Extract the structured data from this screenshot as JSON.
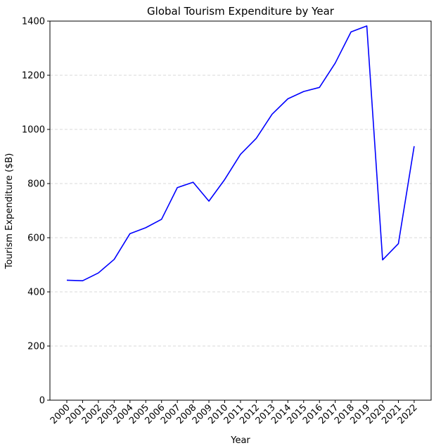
{
  "chart_data": {
    "type": "line",
    "title": "Global Tourism Expenditure by Year",
    "xlabel": "Year",
    "ylabel": "Tourism Expenditure ($B)",
    "ylim": [
      0,
      1400
    ],
    "yticks": [
      0,
      200,
      400,
      600,
      800,
      1000,
      1200,
      1400
    ],
    "grid": "y-dashed",
    "categories": [
      "2000",
      "2001",
      "2002",
      "2003",
      "2004",
      "2005",
      "2006",
      "2007",
      "2008",
      "2009",
      "2010",
      "2011",
      "2012",
      "2013",
      "2014",
      "2015",
      "2016",
      "2017",
      "2018",
      "2019",
      "2020",
      "2021",
      "2022"
    ],
    "series": [
      {
        "values": [
          443,
          441,
          470,
          520,
          615,
          637,
          668,
          785,
          805,
          735,
          815,
          908,
          967,
          1056,
          1113,
          1140,
          1155,
          1245,
          1360,
          1382,
          518,
          578,
          938
        ],
        "color": "#0000ff"
      }
    ]
  }
}
